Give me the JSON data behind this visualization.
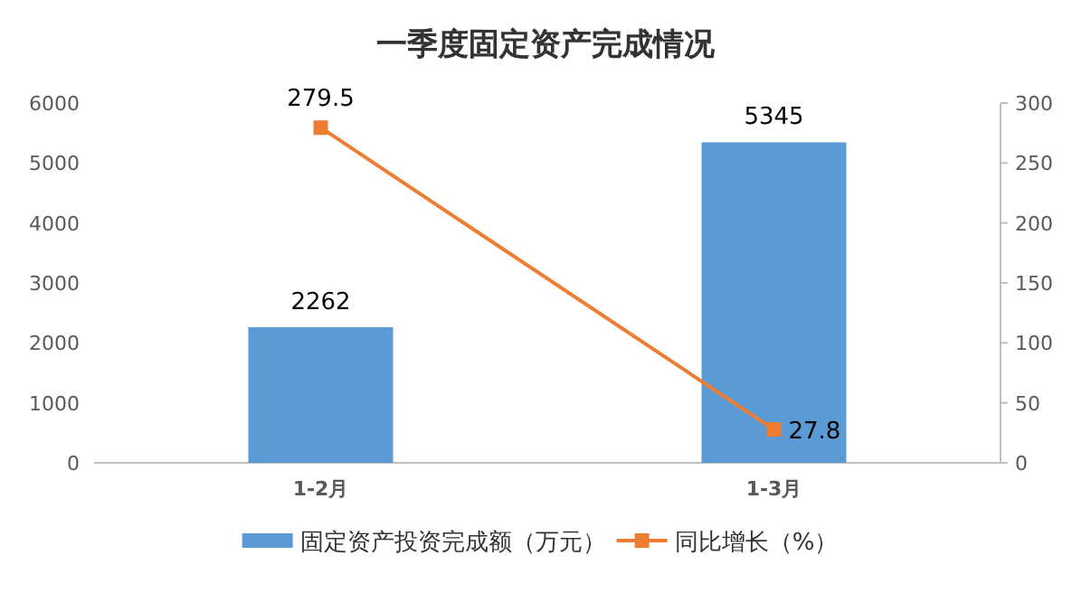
{
  "chart_data": {
    "type": "bar",
    "title": "一季度固定资产完成情况",
    "categories": [
      "1-2月",
      "1-3月"
    ],
    "series": [
      {
        "name": "固定资产投资完成额（万元）",
        "color": "#5b9bd5",
        "values": [
          2262,
          5345
        ]
      },
      {
        "name": "同比增长（%）",
        "color": "#ed7d31",
        "values": [
          279.5,
          27.8
        ],
        "type": "line",
        "axis": "y2",
        "marker": "square"
      }
    ],
    "ylim": [
      0,
      6000
    ],
    "yticks": [
      0,
      1000,
      2000,
      3000,
      4000,
      5000,
      6000
    ],
    "y2lim": [
      0,
      300
    ],
    "y2ticks": [
      0,
      50,
      100,
      150,
      200,
      250,
      300
    ],
    "data_labels": true,
    "legend": "bottom",
    "grid": false
  }
}
